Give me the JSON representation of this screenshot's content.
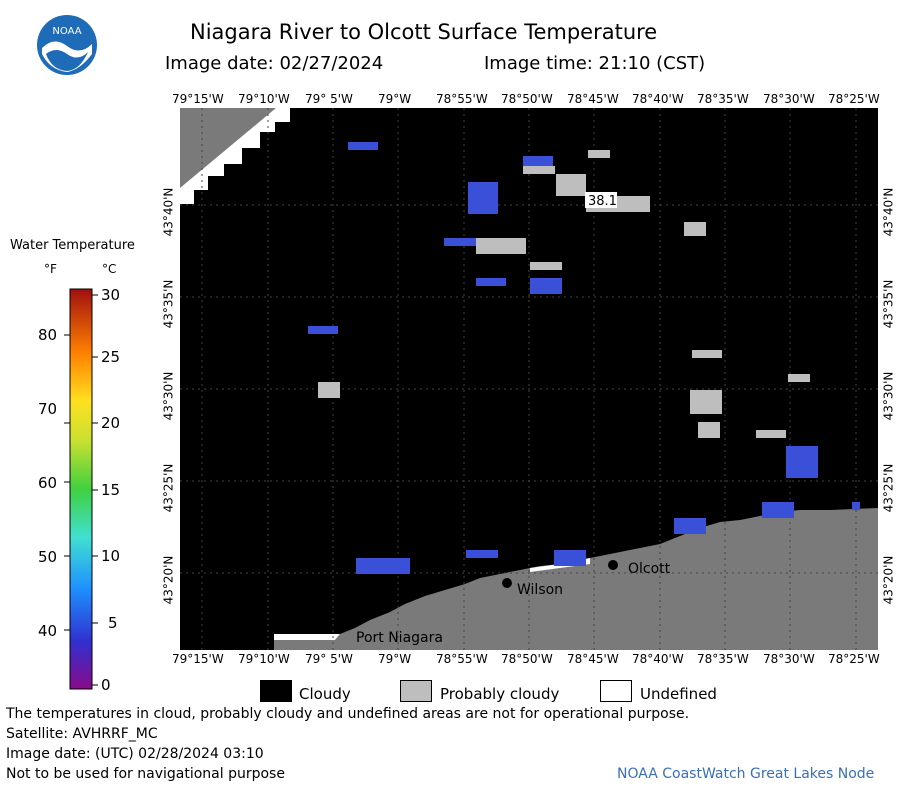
{
  "header": {
    "title": "Niagara River to Olcott Surface Temperature",
    "image_date_label": "Image date: 02/27/2024",
    "image_time_label": "Image time: 21:10 (CST)"
  },
  "logo": {
    "text": "NOAA",
    "icon": "noaa-logo-icon"
  },
  "colorbar": {
    "title": "Water Temperature",
    "unit_f": "°F",
    "unit_c": "°C",
    "f_ticks": [
      "80",
      "70",
      "60",
      "50",
      "40"
    ],
    "c_ticks": [
      "30",
      "25",
      "20",
      "15",
      "10",
      "5",
      "0"
    ]
  },
  "map": {
    "lon_labels_top": [
      "79°15'W",
      "79°10'W",
      "79° 5'W",
      "79°W",
      "78°55'W",
      "78°50'W",
      "78°45'W",
      "78°40'W",
      "78°35'W",
      "78°30'W",
      "78°25'W"
    ],
    "lon_labels_bottom": [
      "79°15'W",
      "79°10'W",
      "79° 5'W",
      "79°W",
      "78°55'W",
      "78°50'W",
      "78°45'W",
      "78°40'W",
      "78°35'W",
      "78°30'W",
      "78°25'W"
    ],
    "lat_labels": [
      "43°40'N",
      "43°35'N",
      "43°30'N",
      "43°25'N",
      "43°20'N"
    ],
    "places": {
      "olcott": "Olcott",
      "wilson": "Wilson",
      "port_niagara": "Port Niagara"
    },
    "temp_label": "38.1",
    "colors": {
      "cloud": "#000000",
      "probably_cloudy": "#bebebe",
      "land": "#7a7a7a",
      "undefined": "#ffffff",
      "cold_water": "#3a50d8"
    }
  },
  "legend": {
    "cloudy": "Cloudy",
    "probably_cloudy": "Probably cloudy",
    "undefined": "Undefined"
  },
  "footer": {
    "disclaimer": "The temperatures in cloud, probably cloudy and undefined areas are not for operational purpose.",
    "satellite": "Satellite: AVHRRF_MC",
    "image_date_utc": "Image date: (UTC) 02/28/2024  03:10",
    "nav_warning": "Not to be used for navigational purpose",
    "credit": "NOAA CoastWatch Great Lakes Node"
  }
}
